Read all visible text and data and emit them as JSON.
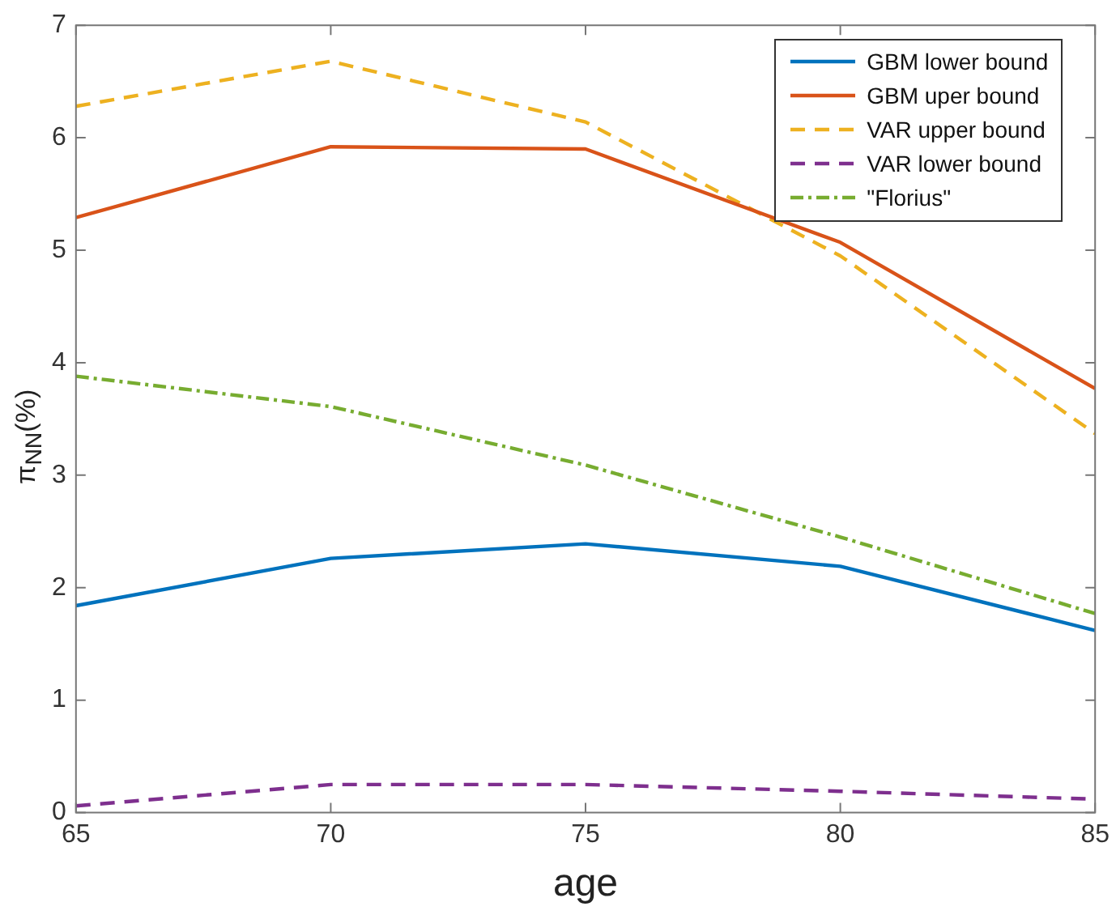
{
  "chart_data": {
    "type": "line",
    "xlabel": "age",
    "ylabel": "π$_{NN}$(%)",
    "x": [
      65,
      70,
      75,
      80,
      85
    ],
    "xlim": [
      65,
      85
    ],
    "xticks": [
      65,
      70,
      75,
      80,
      85
    ],
    "ylim": [
      0,
      7
    ],
    "yticks": [
      0,
      1,
      2,
      3,
      4,
      5,
      6,
      7
    ],
    "grid": false,
    "legend": "top right",
    "marker": "none",
    "series": [
      {
        "name": "GBM lower bound",
        "color": "#0072bd",
        "line_style": "solid",
        "values": [
          1.84,
          2.26,
          2.39,
          2.19,
          1.62
        ]
      },
      {
        "name": "GBM uper bound",
        "color": "#d95319",
        "line_style": "solid",
        "values": [
          5.29,
          5.92,
          5.9,
          5.07,
          3.77
        ]
      },
      {
        "name": "VAR upper bound",
        "color": "#edb120",
        "line_style": "dashed",
        "values": [
          6.28,
          6.68,
          6.14,
          4.95,
          3.37
        ]
      },
      {
        "name": "VAR lower bound",
        "color": "#7e2f8e",
        "line_style": "dashed",
        "values": [
          0.06,
          0.25,
          0.25,
          0.19,
          0.12
        ]
      },
      {
        "name": "\"Florius\"",
        "color": "#77ac30",
        "line_style": "dashdot",
        "values": [
          3.88,
          3.61,
          3.09,
          2.45,
          1.77
        ]
      }
    ]
  }
}
